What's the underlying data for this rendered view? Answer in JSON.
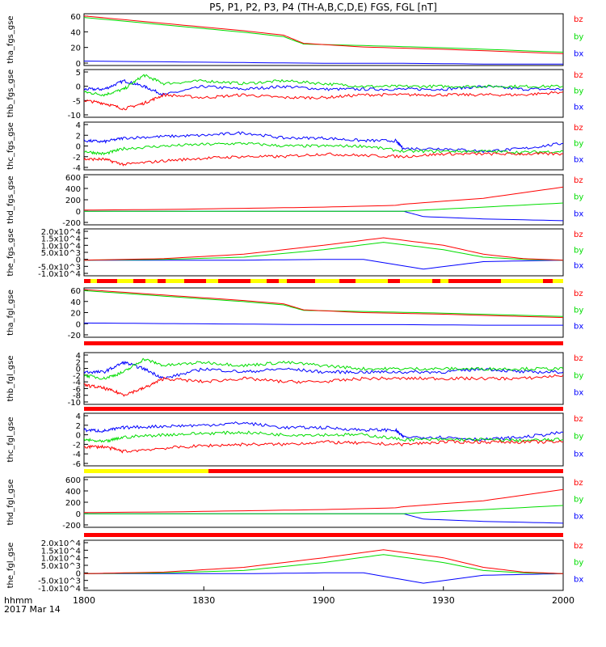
{
  "chart_data": {
    "type": "line",
    "title": "P5, P1, P2, P3, P4 (TH-A,B,C,D,E) FGS, FGL [nT]",
    "x_ticks": [
      "1800",
      "1830",
      "1900",
      "1930",
      "2000"
    ],
    "x_label_line1": "hhmm",
    "x_label_line2": "2017 Mar 14",
    "xlim": [
      "18:00",
      "20:00"
    ],
    "legend": [
      "bz",
      "by",
      "bx"
    ],
    "colors": {
      "bz": "#ff0000",
      "by": "#00dd00",
      "bx": "#0000ff"
    },
    "panels": [
      {
        "ylabel": "tha_fgs_gse",
        "yticks": [
          "60",
          "40",
          "20",
          "0"
        ],
        "ylim": [
          -5,
          65
        ],
        "series": [
          {
            "name": "bz",
            "x": [
              0,
              20,
              40,
              50,
              55,
              70,
              90,
              120
            ],
            "y": [
              62,
              52,
              42,
              36,
              25,
              20,
              17,
              11
            ]
          },
          {
            "name": "by",
            "x": [
              0,
              20,
              40,
              50,
              55,
              70,
              90,
              120
            ],
            "y": [
              60,
              50,
              40,
              34,
              24,
              22,
              19,
              13
            ]
          },
          {
            "name": "bx",
            "x": [
              0,
              20,
              40,
              60,
              80,
              100,
              120
            ],
            "y": [
              1,
              0,
              -1,
              -2,
              -2,
              -3,
              -3
            ]
          }
        ]
      },
      {
        "ylabel": "thb_fgs_gse",
        "yticks": [
          "5",
          "0",
          "-5",
          "-10"
        ],
        "ylim": [
          -11,
          6
        ],
        "series": [
          {
            "name": "bz",
            "x": [
              0,
              5,
              10,
              15,
              20,
              30,
              40,
              50,
              60,
              70,
              80,
              90,
              100,
              110,
              120
            ],
            "y": [
              -5,
              -6,
              -8,
              -6,
              -3,
              -4,
              -3,
              -4,
              -4,
              -3,
              -3,
              -3,
              -3,
              -3,
              -2
            ]
          },
          {
            "name": "by",
            "x": [
              0,
              5,
              10,
              15,
              20,
              30,
              40,
              50,
              60,
              70,
              80,
              90,
              100,
              110,
              120
            ],
            "y": [
              -2,
              -3,
              -1,
              4,
              1,
              2,
              1,
              2,
              1,
              0,
              0,
              0,
              0,
              0,
              0
            ]
          },
          {
            "name": "bx",
            "x": [
              0,
              5,
              10,
              15,
              20,
              30,
              40,
              50,
              60,
              70,
              80,
              90,
              100,
              110,
              120
            ],
            "y": [
              -1,
              -1,
              2,
              0,
              -3,
              0,
              -1,
              0,
              -1,
              -1,
              -1,
              -1,
              0,
              -1,
              -1
            ]
          }
        ]
      },
      {
        "ylabel": "thc_fgs_gse",
        "yticks": [
          "4",
          "2",
          "0",
          "-2",
          "-4"
        ],
        "ylim": [
          -4.5,
          4.5
        ],
        "series": [
          {
            "name": "bz",
            "x": [
              0,
              5,
              10,
              20,
              30,
              40,
              50,
              60,
              70,
              80,
              90,
              100,
              110,
              120
            ],
            "y": [
              -2.5,
              -2.5,
              -3.5,
              -2.8,
              -2.3,
              -2,
              -2,
              -1.5,
              -1.8,
              -2,
              -1.5,
              -1.5,
              -1.5,
              -1.5
            ]
          },
          {
            "name": "by",
            "x": [
              0,
              5,
              10,
              20,
              30,
              40,
              50,
              60,
              70,
              80,
              90,
              100,
              110,
              120
            ],
            "y": [
              -1,
              -1.5,
              -0.5,
              0,
              0.3,
              0.5,
              0,
              0,
              0,
              -1,
              -1,
              -1,
              -1.2,
              -1
            ]
          },
          {
            "name": "bx",
            "x": [
              0,
              5,
              10,
              20,
              30,
              40,
              50,
              60,
              70,
              78,
              80,
              90,
              100,
              110,
              120
            ],
            "y": [
              1,
              0.8,
              1.5,
              1.8,
              2,
              2.5,
              1.5,
              1.5,
              1,
              1,
              -0.5,
              -0.5,
              -1,
              -0.5,
              0.5
            ]
          }
        ]
      },
      {
        "ylabel": "thd_fgs_gse",
        "yticks": [
          "600",
          "400",
          "200",
          "0",
          "-200"
        ],
        "ylim": [
          -200,
          650
        ],
        "series": [
          {
            "name": "bz",
            "x": [
              0,
              20,
              40,
              60,
              78,
              80,
              100,
              120
            ],
            "y": [
              50,
              60,
              80,
              100,
              130,
              150,
              250,
              440
            ]
          },
          {
            "name": "by",
            "x": [
              0,
              80,
              85,
              100,
              120
            ],
            "y": [
              30,
              30,
              50,
              100,
              170
            ]
          },
          {
            "name": "bx",
            "x": [
              0,
              80,
              85,
              100,
              120
            ],
            "y": [
              30,
              30,
              -60,
              -100,
              -130
            ]
          }
        ]
      },
      {
        "ylabel": "the_fgs_gse",
        "yticks": [
          "2.0x10^4",
          "1.5x10^4",
          "1.0x10^4",
          "5.0x10^3",
          "0",
          "-5.0x10^3",
          "-1.0x10^4"
        ],
        "ylim": [
          -10500,
          21000
        ],
        "series": [
          {
            "name": "bz",
            "x": [
              0,
              20,
              40,
              60,
              75,
              90,
              100,
              110,
              120
            ],
            "y": [
              0,
              1000,
              4000,
              10000,
              15000,
              10000,
              4000,
              1000,
              0
            ]
          },
          {
            "name": "by",
            "x": [
              0,
              20,
              40,
              60,
              75,
              90,
              100,
              110,
              120
            ],
            "y": [
              0,
              500,
              2000,
              7000,
              12000,
              7000,
              2000,
              500,
              0
            ]
          },
          {
            "name": "bx",
            "x": [
              0,
              20,
              40,
              60,
              70,
              85,
              100,
              120
            ],
            "y": [
              0,
              0,
              0,
              500,
              500,
              -6000,
              -1000,
              0
            ]
          }
        ]
      },
      {
        "ylabel": "tha_fgl_gse",
        "yticks": [
          "60",
          "40",
          "20",
          "0",
          "-20"
        ],
        "ylim": [
          -25,
          65
        ],
        "series": [
          {
            "name": "bz",
            "x": [
              0,
              20,
              40,
              50,
              55,
              70,
              90,
              120
            ],
            "y": [
              62,
              52,
              42,
              36,
              25,
              20,
              17,
              11
            ]
          },
          {
            "name": "by",
            "x": [
              0,
              20,
              40,
              50,
              55,
              70,
              90,
              120
            ],
            "y": [
              60,
              50,
              40,
              34,
              24,
              22,
              19,
              13
            ]
          },
          {
            "name": "bx",
            "x": [
              0,
              20,
              40,
              60,
              80,
              100,
              120
            ],
            "y": [
              1,
              0,
              -1,
              -2,
              -2,
              -3,
              -3
            ]
          }
        ]
      },
      {
        "ylabel": "thb_fgl_gse",
        "yticks": [
          "4",
          "2",
          "0",
          "-2",
          "-4",
          "-6",
          "-8",
          "-10"
        ],
        "ylim": [
          -11,
          5
        ],
        "series": [
          {
            "name": "bz",
            "x": [
              0,
              5,
              10,
              15,
              20,
              30,
              40,
              50,
              60,
              70,
              80,
              90,
              100,
              110,
              120
            ],
            "y": [
              -5,
              -6,
              -8,
              -6,
              -3,
              -4,
              -3,
              -4,
              -4,
              -3,
              -3,
              -3,
              -3,
              -3,
              -2
            ]
          },
          {
            "name": "by",
            "x": [
              0,
              5,
              10,
              15,
              20,
              30,
              40,
              50,
              60,
              70,
              80,
              90,
              100,
              110,
              120
            ],
            "y": [
              -2,
              -3,
              -1,
              3,
              1,
              2,
              1,
              2,
              1,
              0,
              0,
              0,
              0,
              0,
              0
            ]
          },
          {
            "name": "bx",
            "x": [
              0,
              5,
              10,
              15,
              20,
              30,
              40,
              50,
              60,
              70,
              80,
              90,
              100,
              110,
              120
            ],
            "y": [
              -1,
              -1,
              2,
              0,
              -3,
              0,
              -1,
              0,
              -1,
              -1,
              -1,
              -1,
              0,
              -1,
              -1
            ]
          }
        ]
      },
      {
        "ylabel": "thc_fgl_gse",
        "yticks": [
          "4",
          "2",
          "0",
          "-2",
          "-4",
          "-6"
        ],
        "ylim": [
          -6.5,
          4.5
        ],
        "series": [
          {
            "name": "bz",
            "x": [
              0,
              5,
              10,
              20,
              30,
              40,
              50,
              60,
              70,
              80,
              90,
              100,
              110,
              120
            ],
            "y": [
              -2.5,
              -2.5,
              -3.5,
              -2.8,
              -2.3,
              -2,
              -2,
              -1.5,
              -1.8,
              -2,
              -1.5,
              -1.5,
              -1.5,
              -1.5
            ]
          },
          {
            "name": "by",
            "x": [
              0,
              5,
              10,
              20,
              30,
              40,
              50,
              60,
              70,
              80,
              90,
              100,
              110,
              120
            ],
            "y": [
              -1,
              -1.5,
              -0.5,
              0,
              0.3,
              0.5,
              0,
              0,
              0,
              -1,
              -1,
              -1,
              -1.2,
              -1
            ]
          },
          {
            "name": "bx",
            "x": [
              0,
              5,
              10,
              20,
              30,
              40,
              50,
              60,
              70,
              78,
              80,
              90,
              100,
              110,
              120
            ],
            "y": [
              1,
              0.8,
              1.5,
              1.8,
              2,
              2.5,
              1.5,
              1.5,
              1,
              1,
              -0.5,
              -0.5,
              -1,
              -0.5,
              0.5
            ]
          }
        ]
      },
      {
        "ylabel": "thd_fgl_gse",
        "yticks": [
          "600",
          "400",
          "200",
          "0",
          "-200"
        ],
        "ylim": [
          -200,
          650
        ],
        "series": [
          {
            "name": "bz",
            "x": [
              0,
              20,
              40,
              60,
              78,
              80,
              100,
              120
            ],
            "y": [
              50,
              60,
              80,
              100,
              130,
              150,
              250,
              440
            ]
          },
          {
            "name": "by",
            "x": [
              0,
              80,
              85,
              100,
              120
            ],
            "y": [
              30,
              30,
              50,
              100,
              170
            ]
          },
          {
            "name": "bx",
            "x": [
              0,
              80,
              85,
              100,
              120
            ],
            "y": [
              30,
              30,
              -60,
              -100,
              -130
            ]
          }
        ]
      },
      {
        "ylabel": "the_fgl_gse",
        "yticks": [
          "2.0x10^4",
          "1.5x10^4",
          "1.0x10^4",
          "5.0x10^3",
          "0",
          "-5.0x10^3",
          "-1.0x10^4"
        ],
        "ylim": [
          -10500,
          21000
        ],
        "series": [
          {
            "name": "bz",
            "x": [
              0,
              20,
              40,
              60,
              75,
              90,
              100,
              110,
              120
            ],
            "y": [
              0,
              1000,
              4000,
              10000,
              15000,
              10000,
              4000,
              1000,
              0
            ]
          },
          {
            "name": "by",
            "x": [
              0,
              20,
              40,
              60,
              75,
              90,
              100,
              110,
              120
            ],
            "y": [
              0,
              500,
              2000,
              7000,
              12000,
              7000,
              2000,
              500,
              0
            ]
          },
          {
            "name": "bx",
            "x": [
              0,
              20,
              40,
              60,
              70,
              85,
              100,
              120
            ],
            "y": [
              0,
              0,
              0,
              500,
              500,
              -6000,
              -1000,
              0
            ]
          }
        ]
      }
    ]
  }
}
